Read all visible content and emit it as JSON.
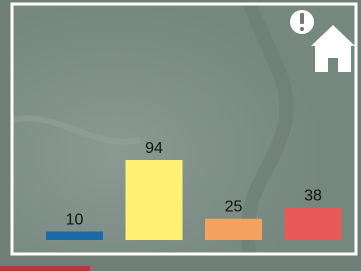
{
  "chart_data": {
    "type": "bar",
    "categories": [
      null,
      null,
      null,
      null
    ],
    "values": [
      10,
      94,
      25,
      38
    ],
    "colors": [
      "#1b6aa5",
      "#fff176",
      "#f4a25e",
      "#e85a58"
    ]
  }
}
